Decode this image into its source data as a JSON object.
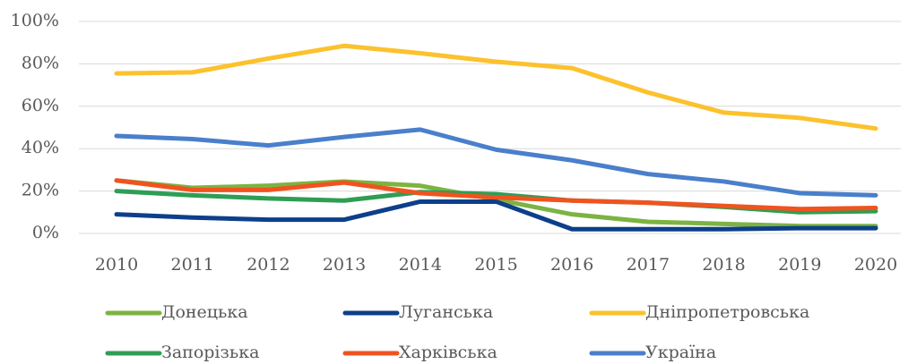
{
  "chart_data": {
    "type": "line",
    "categories": [
      "2010",
      "2011",
      "2012",
      "2013",
      "2014",
      "2015",
      "2016",
      "2017",
      "2018",
      "2019",
      "2020"
    ],
    "ylim": [
      0,
      100
    ],
    "yticks": [
      {
        "value": 0,
        "label": "0%"
      },
      {
        "value": 20,
        "label": "20%"
      },
      {
        "value": 40,
        "label": "40%"
      },
      {
        "value": 60,
        "label": "60%"
      },
      {
        "value": 80,
        "label": "80%"
      },
      {
        "value": 100,
        "label": "100%"
      }
    ],
    "grid": true,
    "legend": "bottom",
    "series": [
      {
        "name": "Донецька",
        "color": "#7cb342",
        "values": [
          25,
          21.5,
          22.5,
          24.5,
          22.5,
          16,
          9,
          5.5,
          4.5,
          3.5,
          3.5
        ]
      },
      {
        "name": "Луганська",
        "color": "#0d3f8a",
        "values": [
          9,
          7.5,
          6.5,
          6.5,
          15,
          15,
          2,
          2,
          2,
          2.5,
          2.5
        ]
      },
      {
        "name": "Дніпропетровська",
        "color": "#fcc12d",
        "values": [
          75.5,
          76,
          82.5,
          88.5,
          85,
          81,
          78,
          66.5,
          57,
          54.5,
          49.5
        ]
      },
      {
        "name": "Запорізька",
        "color": "#2e9e55",
        "values": [
          20,
          18,
          16.5,
          15.5,
          19.5,
          18.5,
          15.5,
          14.5,
          12.5,
          10,
          10.5
        ]
      },
      {
        "name": "Харківська",
        "color": "#f0531f",
        "values": [
          25,
          20.5,
          20.5,
          24,
          19,
          17,
          15.5,
          14.5,
          13,
          11.5,
          12
        ]
      },
      {
        "name": "Україна",
        "color": "#4a7fcb",
        "values": [
          46,
          44.5,
          41.5,
          45.5,
          49,
          39.5,
          34.5,
          28,
          24.5,
          19,
          18
        ]
      }
    ]
  }
}
